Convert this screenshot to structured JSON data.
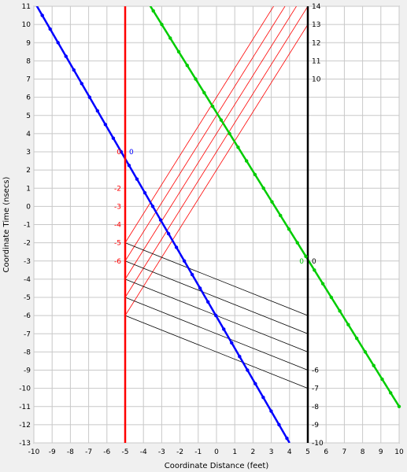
{
  "chart_data": {
    "type": "line",
    "xlabel": "Coordinate Distance (feet)",
    "ylabel": "Coordinate Time (nsecs)",
    "xlim": [
      -10,
      10
    ],
    "ylim": [
      -13,
      11
    ],
    "x_ticks": [
      -10,
      -9,
      -8,
      -7,
      -6,
      -5,
      -4,
      -3,
      -2,
      -1,
      0,
      1,
      2,
      3,
      4,
      5,
      6,
      7,
      8,
      9,
      10
    ],
    "y_ticks": [
      11,
      10,
      9,
      8,
      7,
      6,
      5,
      4,
      3,
      2,
      1,
      0,
      -1,
      -2,
      -3,
      -4,
      -5,
      -6,
      -7,
      -8,
      -9,
      -10,
      -11,
      -12,
      -13
    ],
    "grid": true,
    "colors": {
      "blue": "#0000ff",
      "red": "#ff0000",
      "green": "#00cc00",
      "black": "#000000",
      "grid": "#c8c8c8",
      "plot_bg": "#ffffff"
    },
    "worldlines": [
      {
        "color": "blue",
        "points": [
          [
            -10,
            11.3
          ],
          [
            4,
            -13
          ]
        ],
        "dot_step_t": -0.75,
        "dot_start_t": 11.25
      },
      {
        "color": "red",
        "points": [
          [
            -5,
            11
          ],
          [
            -5,
            -13
          ]
        ]
      },
      {
        "color": "green",
        "points": [
          [
            -3.8,
            11.3
          ],
          [
            10,
            -11
          ]
        ],
        "dot_step_t": -0.75,
        "dot_start_t": 10.75
      },
      {
        "color": "black",
        "points": [
          [
            5,
            11
          ],
          [
            5,
            -13
          ]
        ]
      }
    ],
    "light_rays_red": [
      {
        "from": [
          -5,
          -2
        ],
        "to": [
          5,
          14
        ]
      },
      {
        "from": [
          -5,
          -3
        ],
        "to": [
          5,
          13
        ]
      },
      {
        "from": [
          -5,
          -4
        ],
        "to": [
          5,
          12
        ]
      },
      {
        "from": [
          -5,
          -5
        ],
        "to": [
          5,
          11
        ]
      },
      {
        "from": [
          -5,
          -6
        ],
        "to": [
          5,
          10
        ]
      }
    ],
    "light_rays_black": [
      {
        "from": [
          -5,
          -2
        ],
        "to": [
          5,
          -6
        ]
      },
      {
        "from": [
          -5,
          -3
        ],
        "to": [
          5,
          -7
        ]
      },
      {
        "from": [
          -5,
          -4
        ],
        "to": [
          5,
          -8
        ]
      },
      {
        "from": [
          -5,
          -5
        ],
        "to": [
          5,
          -9
        ]
      },
      {
        "from": [
          -5,
          -6
        ],
        "to": [
          5,
          -10
        ]
      }
    ],
    "annotations": [
      {
        "text": "0",
        "color": "red",
        "x": -5,
        "y": 3,
        "side": "left"
      },
      {
        "text": "0",
        "color": "blue",
        "x": -5,
        "y": 3,
        "side": "right"
      },
      {
        "text": "-2",
        "color": "red",
        "x": -5,
        "y": 1,
        "side": "left"
      },
      {
        "text": "-3",
        "color": "red",
        "x": -5,
        "y": 0,
        "side": "left"
      },
      {
        "text": "-4",
        "color": "red",
        "x": -5,
        "y": -1,
        "side": "left"
      },
      {
        "text": "-5",
        "color": "red",
        "x": -5,
        "y": -2,
        "side": "left"
      },
      {
        "text": "-6",
        "color": "red",
        "x": -5,
        "y": -3,
        "side": "left"
      },
      {
        "text": "14",
        "color": "black",
        "x": 5,
        "y": 11,
        "side": "right"
      },
      {
        "text": "13",
        "color": "black",
        "x": 5,
        "y": 10,
        "side": "right"
      },
      {
        "text": "12",
        "color": "black",
        "x": 5,
        "y": 9,
        "side": "right"
      },
      {
        "text": "11",
        "color": "black",
        "x": 5,
        "y": 8,
        "side": "right"
      },
      {
        "text": "10",
        "color": "black",
        "x": 5,
        "y": 7,
        "side": "right"
      },
      {
        "text": "0",
        "color": "green",
        "x": 5,
        "y": -3,
        "side": "left"
      },
      {
        "text": "0",
        "color": "black",
        "x": 5,
        "y": -3,
        "side": "right"
      },
      {
        "text": "-6",
        "color": "black",
        "x": 5,
        "y": -9,
        "side": "right"
      },
      {
        "text": "-7",
        "color": "black",
        "x": 5,
        "y": -10,
        "side": "right"
      },
      {
        "text": "-8",
        "color": "black",
        "x": 5,
        "y": -11,
        "side": "right"
      },
      {
        "text": "-9",
        "color": "black",
        "x": 5,
        "y": -12,
        "side": "right"
      },
      {
        "text": "-10",
        "color": "black",
        "x": 5,
        "y": -13,
        "side": "right"
      }
    ]
  }
}
